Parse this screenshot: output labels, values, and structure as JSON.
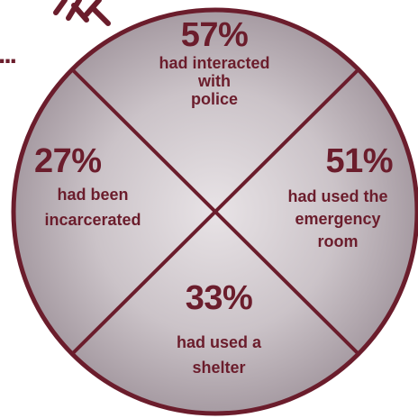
{
  "colors": {
    "maroon": "#6b1d2c",
    "fill_light": "#e8e3e6",
    "fill_dark": "#9d9199"
  },
  "sections": {
    "top": {
      "percent": "57%",
      "line1": "had interacted",
      "line2": "with",
      "line3": "police"
    },
    "left": {
      "percent": "27%",
      "line1": "had been",
      "line2": "incarcerated"
    },
    "right": {
      "percent": "51%",
      "line1": "had used the",
      "line2": "emergency",
      "line3": "room"
    },
    "bottom": {
      "percent": "33%",
      "line1": "had used a",
      "line2": "shelter"
    }
  },
  "ellipsis": "..."
}
